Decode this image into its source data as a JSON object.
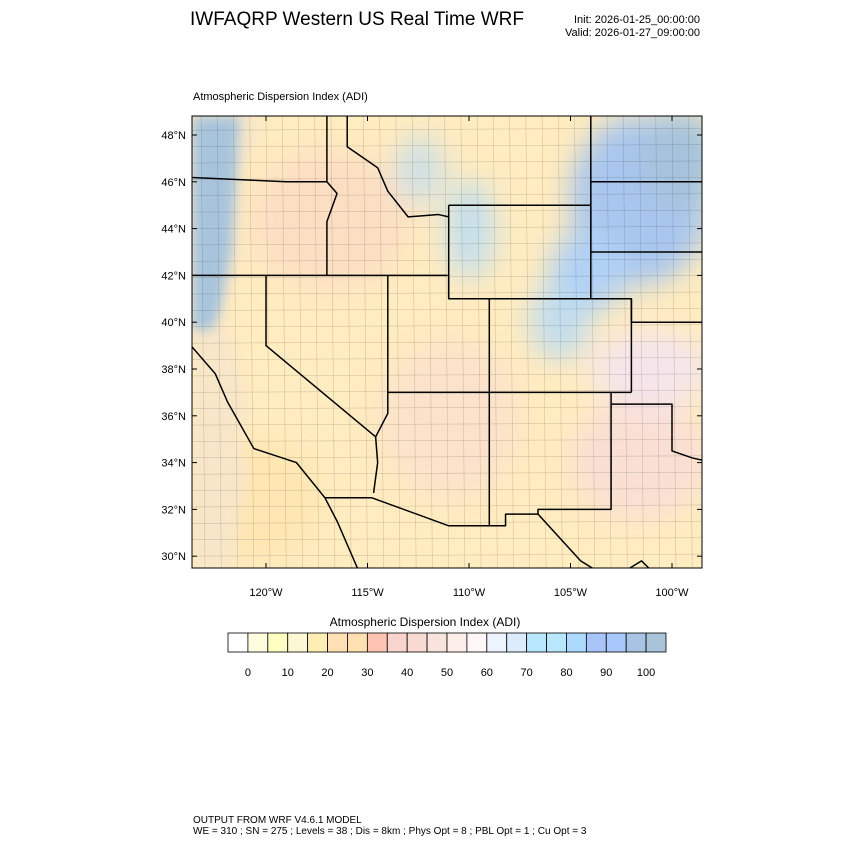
{
  "header": {
    "title": "IWFAQRP Western US Real Time WRF",
    "init": "Init: 2026-01-25_00:00:00",
    "valid": "Valid: 2026-01-27_09:00:00"
  },
  "map": {
    "subtitle": "Atmospheric Dispersion Index   (ADI)",
    "lat_labels": [
      "48°N",
      "46°N",
      "44°N",
      "42°N",
      "40°N",
      "38°N",
      "36°N",
      "34°N",
      "32°N",
      "30°N"
    ],
    "lat_values": [
      48,
      46,
      44,
      42,
      40,
      38,
      36,
      34,
      32,
      30
    ],
    "lon_labels": [
      "120°W",
      "115°W",
      "110°W",
      "105°W",
      "100°W"
    ],
    "lon_values": [
      -120,
      -115,
      -110,
      -105,
      -100
    ],
    "colors": {
      "ocean": "#a8c4dc",
      "land_low": "#ffeeb8",
      "land_mid": "#f8d4c8",
      "high": "#a8c8f0",
      "border": "#000000"
    }
  },
  "colorbar": {
    "title": "Atmospheric Dispersion Index  (ADI)",
    "labels": [
      "0",
      "10",
      "20",
      "30",
      "40",
      "50",
      "60",
      "70",
      "80",
      "90",
      "100"
    ],
    "colors": [
      "#ffffff",
      "#fffde0",
      "#ffffc4",
      "#fcf7d4",
      "#ffeeb4",
      "#ffdfb4",
      "#ffe0b0",
      "#ffc4b4",
      "#f8d4cc",
      "#f8dad2",
      "#f8e4dc",
      "#fdeeea",
      "#fff6f6",
      "#eef4ff",
      "#dcecfc",
      "#b8e6fc",
      "#b8e6fc",
      "#acdafc",
      "#a8c4f8",
      "#a8c8fc",
      "#a8c4e4",
      "#a8c4d8"
    ]
  },
  "footer": {
    "line1": "OUTPUT FROM WRF V4.6.1 MODEL",
    "line2": "WE = 310 ; SN = 275 ; Levels = 38 ; Dis = 8km ; Phys Opt = 8 ; PBL Opt = 1 ; Cu Opt = 3"
  }
}
